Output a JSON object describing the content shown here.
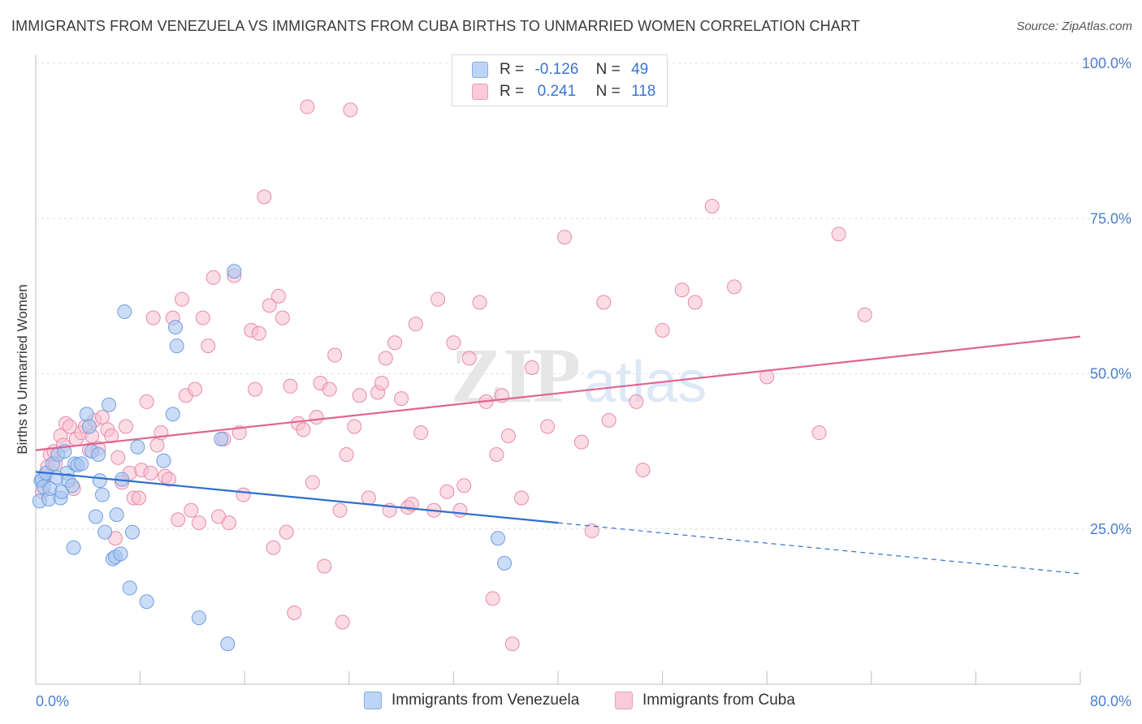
{
  "title": "IMMIGRANTS FROM VENEZUELA VS IMMIGRANTS FROM CUBA BIRTHS TO UNMARRIED WOMEN CORRELATION CHART",
  "source": "Source: ZipAtlas.com",
  "watermark": {
    "part1": "ZIP",
    "part2": "atlas"
  },
  "legend": {
    "venezuela": {
      "r_label": "R =",
      "r_value": "-0.126",
      "n_label": "N =",
      "n_value": "49"
    },
    "cuba": {
      "r_label": "R =",
      "r_value": "0.241",
      "n_label": "N =",
      "n_value": "118"
    }
  },
  "colors": {
    "venezuela_fill": "#a9c6f0",
    "venezuela_stroke": "#6f9ee0",
    "venezuela_line": "#2e6fd0",
    "cuba_fill": "#f7bfd0",
    "cuba_stroke": "#e88aa8",
    "cuba_line": "#e0648e",
    "axis_label": "#4a7fd0",
    "grid": "#dddddd"
  },
  "chart_data": {
    "type": "scatter",
    "title": "IMMIGRANTS FROM VENEZUELA VS IMMIGRANTS FROM CUBA BIRTHS TO UNMARRIED WOMEN CORRELATION CHART",
    "xlabel": "",
    "ylabel": "Births to Unmarried Women",
    "xlim": [
      0,
      80
    ],
    "ylim": [
      0,
      105
    ],
    "x_tick_labels": [
      "0.0%",
      "80.0%"
    ],
    "y_ticks": [
      25,
      50,
      75,
      100
    ],
    "y_tick_labels": [
      "25.0%",
      "50.0%",
      "75.0%",
      "100.0%"
    ],
    "series": [
      {
        "name": "Immigrants from Venezuela",
        "R": -0.126,
        "N": 49,
        "trend": {
          "x_start": 0,
          "y_start": 34.2,
          "x_solid_end": 40,
          "y_solid_end": 26.0,
          "x_dash_end": 80,
          "y_dash_end": 17.8
        },
        "points": [
          [
            0.3,
            29.5
          ],
          [
            0.4,
            32.8
          ],
          [
            0.5,
            33.0
          ],
          [
            0.6,
            31.8
          ],
          [
            0.8,
            34.0
          ],
          [
            1.0,
            29.8
          ],
          [
            1.1,
            31.5
          ],
          [
            1.3,
            35.5
          ],
          [
            1.6,
            33.3
          ],
          [
            1.7,
            37.0
          ],
          [
            1.9,
            30.0
          ],
          [
            2.0,
            31.0
          ],
          [
            2.2,
            37.5
          ],
          [
            2.4,
            34.0
          ],
          [
            2.5,
            32.8
          ],
          [
            2.8,
            32.0
          ],
          [
            3.0,
            35.5
          ],
          [
            3.2,
            35.3
          ],
          [
            3.5,
            35.5
          ],
          [
            3.9,
            43.5
          ],
          [
            4.1,
            41.5
          ],
          [
            4.3,
            37.5
          ],
          [
            4.6,
            27.0
          ],
          [
            4.8,
            37.0
          ],
          [
            4.9,
            32.8
          ],
          [
            5.1,
            30.5
          ],
          [
            5.3,
            24.5
          ],
          [
            5.6,
            45.0
          ],
          [
            5.9,
            20.2
          ],
          [
            6.1,
            20.5
          ],
          [
            6.2,
            27.3
          ],
          [
            6.5,
            21.0
          ],
          [
            6.6,
            33.0
          ],
          [
            6.8,
            60.0
          ],
          [
            7.2,
            15.5
          ],
          [
            7.4,
            24.5
          ],
          [
            7.8,
            38.2
          ],
          [
            8.5,
            13.3
          ],
          [
            9.8,
            36.0
          ],
          [
            10.5,
            43.5
          ],
          [
            10.7,
            57.5
          ],
          [
            10.8,
            54.5
          ],
          [
            12.5,
            10.7
          ],
          [
            14.2,
            39.5
          ],
          [
            14.7,
            6.5
          ],
          [
            15.2,
            66.5
          ],
          [
            2.9,
            22.0
          ],
          [
            35.4,
            23.5
          ],
          [
            35.9,
            19.5
          ]
        ]
      },
      {
        "name": "Immigrants from Cuba",
        "R": 0.241,
        "N": 118,
        "trend": {
          "x_start": 0,
          "y_start": 37.7,
          "x_end": 80,
          "y_end": 56.0
        },
        "points": [
          [
            0.5,
            31.0
          ],
          [
            0.7,
            33.5
          ],
          [
            0.9,
            35.0
          ],
          [
            1.1,
            37.0
          ],
          [
            1.4,
            37.5
          ],
          [
            1.5,
            35.5
          ],
          [
            1.9,
            40.0
          ],
          [
            2.1,
            38.5
          ],
          [
            2.3,
            42.0
          ],
          [
            2.6,
            41.5
          ],
          [
            2.9,
            31.5
          ],
          [
            3.1,
            39.5
          ],
          [
            3.5,
            40.5
          ],
          [
            3.8,
            41.5
          ],
          [
            4.1,
            37.7
          ],
          [
            4.3,
            40.0
          ],
          [
            4.5,
            42.5
          ],
          [
            4.8,
            38.0
          ],
          [
            5.1,
            43.0
          ],
          [
            5.5,
            41.0
          ],
          [
            5.8,
            40.0
          ],
          [
            6.1,
            23.5
          ],
          [
            6.3,
            36.5
          ],
          [
            6.6,
            32.5
          ],
          [
            6.9,
            41.5
          ],
          [
            7.2,
            34.0
          ],
          [
            7.5,
            30.0
          ],
          [
            7.9,
            30.0
          ],
          [
            8.1,
            34.5
          ],
          [
            8.5,
            45.5
          ],
          [
            8.8,
            34.0
          ],
          [
            9.0,
            59.0
          ],
          [
            9.3,
            38.5
          ],
          [
            9.6,
            40.5
          ],
          [
            9.9,
            33.5
          ],
          [
            10.2,
            33.0
          ],
          [
            10.5,
            59.0
          ],
          [
            10.9,
            26.5
          ],
          [
            11.2,
            62.0
          ],
          [
            11.5,
            46.5
          ],
          [
            11.9,
            28.0
          ],
          [
            12.2,
            47.5
          ],
          [
            12.5,
            26.0
          ],
          [
            12.8,
            59.0
          ],
          [
            13.2,
            54.5
          ],
          [
            13.6,
            65.5
          ],
          [
            14.0,
            27.0
          ],
          [
            14.4,
            39.5
          ],
          [
            14.8,
            26.0
          ],
          [
            15.2,
            65.8
          ],
          [
            15.6,
            40.5
          ],
          [
            15.9,
            30.5
          ],
          [
            16.5,
            57.0
          ],
          [
            16.8,
            47.5
          ],
          [
            17.1,
            56.5
          ],
          [
            17.5,
            78.5
          ],
          [
            17.9,
            61.0
          ],
          [
            18.2,
            22.0
          ],
          [
            18.6,
            62.5
          ],
          [
            18.9,
            59.0
          ],
          [
            19.2,
            24.5
          ],
          [
            19.5,
            48.0
          ],
          [
            19.8,
            11.5
          ],
          [
            20.1,
            42.0
          ],
          [
            20.5,
            41.0
          ],
          [
            20.8,
            93.0
          ],
          [
            21.2,
            32.5
          ],
          [
            21.5,
            43.0
          ],
          [
            21.8,
            48.5
          ],
          [
            22.1,
            19.0
          ],
          [
            22.5,
            47.5
          ],
          [
            22.9,
            53.0
          ],
          [
            23.3,
            28.0
          ],
          [
            23.5,
            10.0
          ],
          [
            23.8,
            37.0
          ],
          [
            24.1,
            92.5
          ],
          [
            24.4,
            41.5
          ],
          [
            24.8,
            46.5
          ],
          [
            25.5,
            30.0
          ],
          [
            26.2,
            47.0
          ],
          [
            26.5,
            48.5
          ],
          [
            26.8,
            52.5
          ],
          [
            27.1,
            28.0
          ],
          [
            27.5,
            55.0
          ],
          [
            28.0,
            46.0
          ],
          [
            28.5,
            28.5
          ],
          [
            28.8,
            29.0
          ],
          [
            29.1,
            58.0
          ],
          [
            29.5,
            40.5
          ],
          [
            30.5,
            28.0
          ],
          [
            30.8,
            62.0
          ],
          [
            31.5,
            31.0
          ],
          [
            32.0,
            55.0
          ],
          [
            32.5,
            28.0
          ],
          [
            32.8,
            32.0
          ],
          [
            33.2,
            52.5
          ],
          [
            34.0,
            61.5
          ],
          [
            34.5,
            45.5
          ],
          [
            35.0,
            13.8
          ],
          [
            35.3,
            37.0
          ],
          [
            35.7,
            46.5
          ],
          [
            36.2,
            40.0
          ],
          [
            36.5,
            6.5
          ],
          [
            37.2,
            30.0
          ],
          [
            38.0,
            51.0
          ],
          [
            39.2,
            41.5
          ],
          [
            40.5,
            72.0
          ],
          [
            41.8,
            39.0
          ],
          [
            42.6,
            24.7
          ],
          [
            43.5,
            61.5
          ],
          [
            43.9,
            42.5
          ],
          [
            46.0,
            45.5
          ],
          [
            46.5,
            34.5
          ],
          [
            48.0,
            57.0
          ],
          [
            49.5,
            63.5
          ],
          [
            50.5,
            61.5
          ],
          [
            51.8,
            77.0
          ],
          [
            53.5,
            64.0
          ],
          [
            56.0,
            49.5
          ],
          [
            60.0,
            40.5
          ],
          [
            61.5,
            72.5
          ],
          [
            63.5,
            59.5
          ]
        ]
      }
    ]
  },
  "bottom_legend": {
    "venezuela": "Immigrants from Venezuela",
    "cuba": "Immigrants from Cuba"
  }
}
